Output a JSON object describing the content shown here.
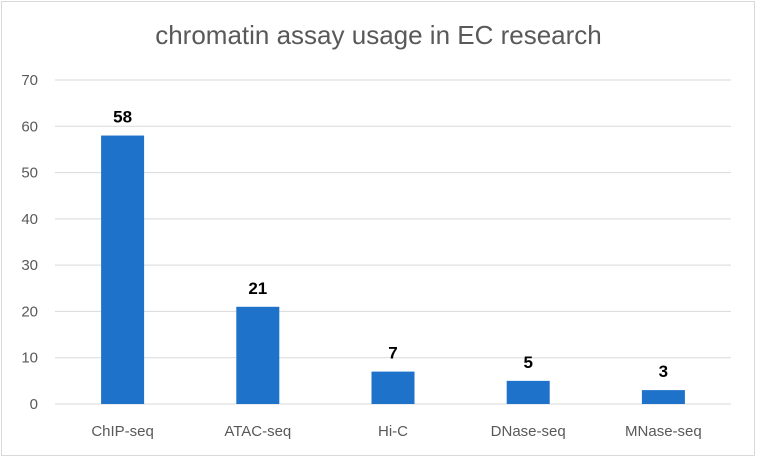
{
  "chart_data": {
    "type": "bar",
    "title": "chromatin assay usage in EC research",
    "xlabel": "",
    "ylabel": "",
    "categories": [
      "ChIP-seq",
      "ATAC-seq",
      "Hi-C",
      "DNase-seq",
      "MNase-seq"
    ],
    "values": [
      58,
      21,
      7,
      5,
      3
    ],
    "data_labels": [
      "58",
      "21",
      "7",
      "5",
      "3"
    ],
    "ylim": [
      0,
      70
    ],
    "yticks": [
      0,
      10,
      20,
      30,
      40,
      50,
      60,
      70
    ],
    "grid": true,
    "legend": "none",
    "bar_color": "#1f72c9"
  }
}
